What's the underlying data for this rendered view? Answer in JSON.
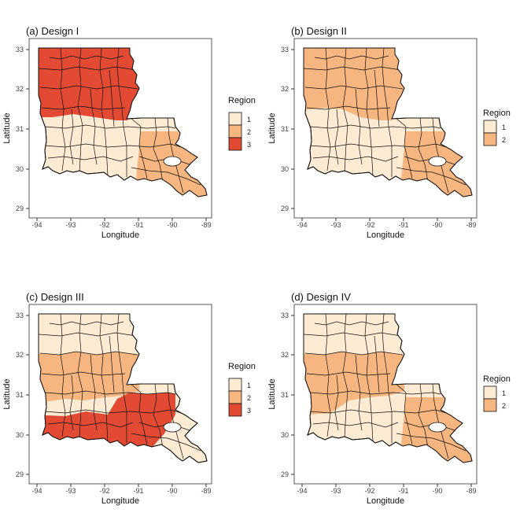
{
  "figure": {
    "panels": [
      {
        "title": "(a) Design I",
        "xlabel": "Longitude",
        "ylabel": "Latitude",
        "xticks": [
          "-94",
          "-93",
          "-92",
          "-91",
          "-90",
          "-89"
        ],
        "yticks": [
          "33",
          "32",
          "31",
          "30",
          "29"
        ],
        "legend_title": "Region",
        "legend_items": [
          {
            "label": "1",
            "color": "#fdebd3"
          },
          {
            "label": "2",
            "color": "#f7b680"
          },
          {
            "label": "3",
            "color": "#e34a33"
          }
        ]
      },
      {
        "title": "(b) Design II",
        "xlabel": "Longitude",
        "ylabel": "Latitude",
        "xticks": [
          "-94",
          "-93",
          "-92",
          "-91",
          "-90",
          "-89"
        ],
        "yticks": [
          "33",
          "32",
          "31",
          "30",
          "29"
        ],
        "legend_title": "Region",
        "legend_items": [
          {
            "label": "1",
            "color": "#fdebd3"
          },
          {
            "label": "2",
            "color": "#f7b680"
          }
        ]
      },
      {
        "title": "(c) Design III",
        "xlabel": "Longitude",
        "ylabel": "Latitude",
        "xticks": [
          "-94",
          "-93",
          "-92",
          "-91",
          "-90",
          "-89"
        ],
        "yticks": [
          "33",
          "32",
          "31",
          "30",
          "29"
        ],
        "legend_title": "Region",
        "legend_items": [
          {
            "label": "1",
            "color": "#fdebd3"
          },
          {
            "label": "2",
            "color": "#f7b680"
          },
          {
            "label": "3",
            "color": "#e34a33"
          }
        ]
      },
      {
        "title": "(d) Design IV",
        "xlabel": "Longitude",
        "ylabel": "Latitude",
        "xticks": [
          "-94",
          "-93",
          "-92",
          "-91",
          "-90",
          "-89"
        ],
        "yticks": [
          "33",
          "32",
          "31",
          "30",
          "29"
        ],
        "legend_title": "Region",
        "legend_items": [
          {
            "label": "1",
            "color": "#fdebd3"
          },
          {
            "label": "2",
            "color": "#f7b680"
          }
        ]
      }
    ]
  }
}
